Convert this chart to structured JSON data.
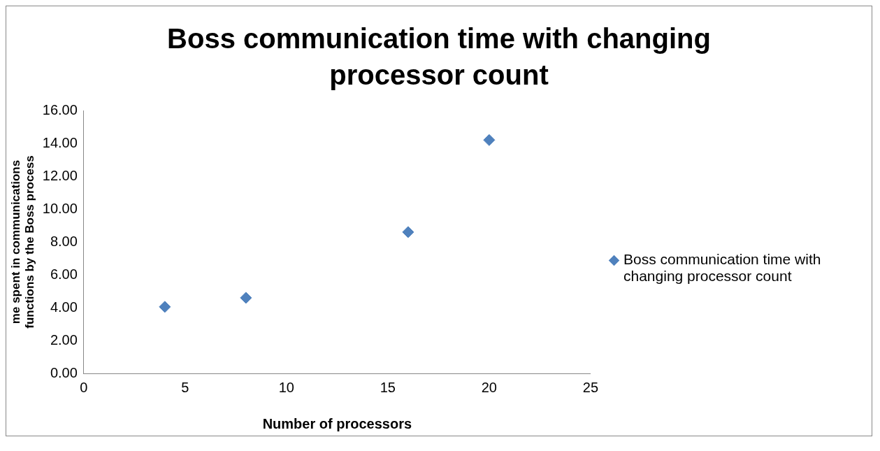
{
  "chart_data": {
    "type": "scatter",
    "title": "Boss communication time with changing processor count",
    "xlabel": "Number of processors",
    "ylabel": "me spent in communications functions by the Boss process",
    "x": [
      4,
      8,
      16,
      20
    ],
    "series": [
      {
        "name": "Boss communication time with changing processor count",
        "color": "#4f81bd",
        "values": [
          4.05,
          4.6,
          8.6,
          14.2
        ]
      }
    ],
    "xlim": [
      0,
      25
    ],
    "xticks": [
      0,
      5,
      10,
      15,
      20,
      25
    ],
    "ylim": [
      0,
      16
    ],
    "yticks": [
      {
        "value": 0,
        "label": "0.00"
      },
      {
        "value": 2,
        "label": "2.00"
      },
      {
        "value": 4,
        "label": "4.00"
      },
      {
        "value": 6,
        "label": "6.00"
      },
      {
        "value": 8,
        "label": "8.00"
      },
      {
        "value": 10,
        "label": "10.00"
      },
      {
        "value": 12,
        "label": "12.00"
      },
      {
        "value": 14,
        "label": "14.00"
      },
      {
        "value": 16,
        "label": "16.00"
      }
    ],
    "grid": false,
    "legend": "right",
    "marker": "diamond"
  }
}
